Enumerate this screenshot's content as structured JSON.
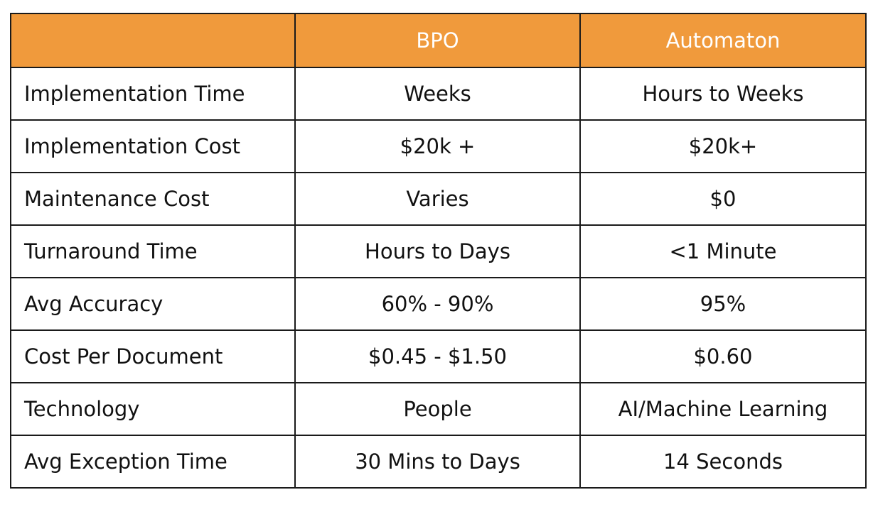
{
  "header": {
    "corner": "",
    "col1": "BPO",
    "col2": "Automaton"
  },
  "colors": {
    "header_bg": "#f09a3c",
    "header_text": "#ffffff",
    "border": "#1a1a1a"
  },
  "rows": [
    {
      "label": "Implementation Time",
      "bpo": "Weeks",
      "automaton": "Hours to Weeks"
    },
    {
      "label": "Implementation Cost",
      "bpo": "$20k +",
      "automaton": "$20k+"
    },
    {
      "label": "Maintenance Cost",
      "bpo": "Varies",
      "automaton": "$0"
    },
    {
      "label": "Turnaround Time",
      "bpo": "Hours to Days",
      "automaton": "<1 Minute"
    },
    {
      "label": "Avg Accuracy",
      "bpo": "60% - 90%",
      "automaton": "95%"
    },
    {
      "label": "Cost Per Document",
      "bpo": "$0.45 - $1.50",
      "automaton": "$0.60"
    },
    {
      "label": "Technology",
      "bpo": "People",
      "automaton": "AI/Machine Learning"
    },
    {
      "label": "Avg Exception Time",
      "bpo": "30 Mins to Days",
      "automaton": "14 Seconds"
    }
  ]
}
